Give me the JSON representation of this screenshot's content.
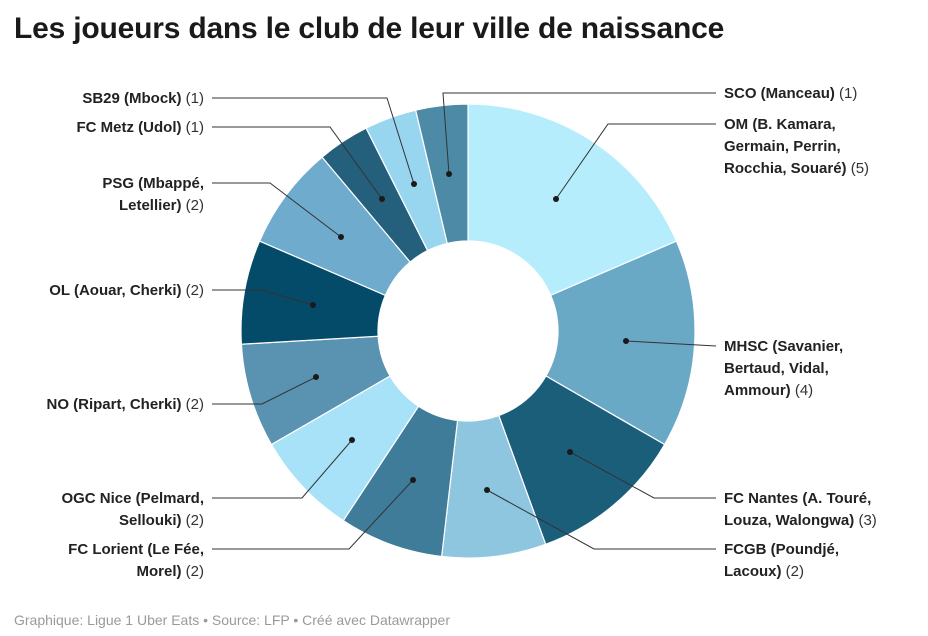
{
  "title": "Les joueurs dans le club de leur ville de naissance",
  "footer": "Graphique: Ligue 1 Uber Eats • Source: LFP • Créé avec Datawrapper",
  "chart_data": {
    "type": "pie",
    "donut": true,
    "legend": "none",
    "slices": [
      {
        "label": [
          "OM (B. Kamara,",
          "Germain, Perrin,",
          "Rocchia, Souaré)"
        ],
        "count_label": "(5)",
        "value": 5,
        "color": "#b5edfc"
      },
      {
        "label": [
          "MHSC (Savanier,",
          "Bertaud, Vidal,",
          "Ammour)"
        ],
        "count_label": "(4)",
        "value": 4,
        "color": "#6aa9c6"
      },
      {
        "label": [
          "FC Nantes (A. Touré,",
          "Louza, Walongwa)"
        ],
        "count_label": "(3)",
        "value": 3,
        "color": "#1b5e7a"
      },
      {
        "label": [
          "FCGB (Poundjé,",
          "Lacoux)"
        ],
        "count_label": "(2)",
        "value": 2,
        "color": "#8ec6e0"
      },
      {
        "label": [
          "FC Lorient (Le Fée,",
          "Morel)"
        ],
        "count_label": "(2)",
        "value": 2,
        "color": "#3e7c99"
      },
      {
        "label": [
          "OGC Nice (Pelmard,",
          "Sellouki)"
        ],
        "count_label": "(2)",
        "value": 2,
        "color": "#a8e2f8"
      },
      {
        "label": [
          "NO (Ripart, Cherki)"
        ],
        "count_label": "(2)",
        "value": 2,
        "color": "#5a93b1"
      },
      {
        "label": [
          "OL (Aouar, Cherki)"
        ],
        "count_label": "(2)",
        "value": 2,
        "color": "#044a69"
      },
      {
        "label": [
          "PSG (Mbappé,",
          "Letellier)"
        ],
        "count_label": "(2)",
        "value": 2,
        "color": "#6eabcc"
      },
      {
        "label": [
          "FC Metz (Udol)"
        ],
        "count_label": "(1)",
        "value": 1,
        "color": "#24607c"
      },
      {
        "label": [
          "SB29 (Mbock)"
        ],
        "count_label": "(1)",
        "value": 1,
        "color": "#98d5ef"
      },
      {
        "label": [
          "SCO (Manceau)"
        ],
        "count_label": "(1)",
        "value": 1,
        "color": "#4d8aa6"
      }
    ]
  }
}
